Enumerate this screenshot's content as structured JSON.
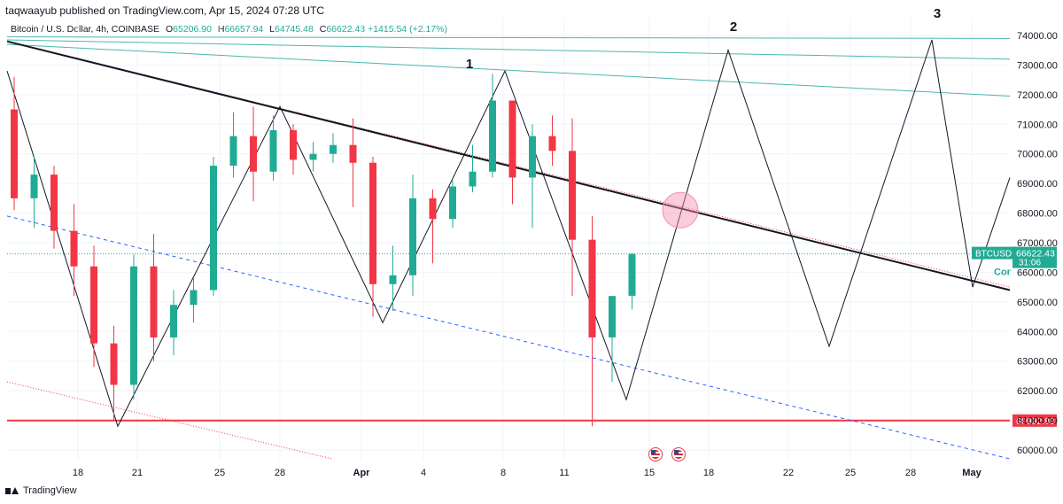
{
  "header": {
    "publisher_line": "taqwaayub published on TradingView.com, Apr 15, 2024 07:28 UTC",
    "symbol_line": "Bitcoin / U.S. Dollar, 4h, COINBASE",
    "open_label": "O",
    "open": "65206.90",
    "high_label": "H",
    "high": "66657.94",
    "low_label": "L",
    "low": "64745.48",
    "close_label": "C",
    "close": "66622.43",
    "change": "+1415.54 (+2.17%)"
  },
  "price_tag": {
    "symbol": "BTCUSD",
    "price": "66622.43",
    "countdown": "31:06",
    "partial_label": "Cor"
  },
  "support_tag": "60992.88",
  "footer": {
    "brand": "TradingView"
  },
  "wave_labels": [
    "1",
    "2",
    "3"
  ],
  "colors": {
    "up": "#22ab94",
    "down": "#f23645",
    "support": "#f23645",
    "trendline": "#131722",
    "channel_lines": "#4db6ac",
    "dashed": "#2962ff",
    "marker": "#f48fb1"
  },
  "chart_data": {
    "type": "candlestick",
    "title": "Bitcoin / U.S. Dollar, 4h, COINBASE",
    "y_axis_ticks": [
      60000,
      61000,
      62000,
      63000,
      64000,
      65000,
      66000,
      67000,
      68000,
      69000,
      70000,
      71000,
      72000,
      73000,
      74000
    ],
    "x_axis_ticks": [
      "18",
      "21",
      "25",
      "28",
      "Apr",
      "4",
      "8",
      "11",
      "15",
      "18",
      "22",
      "25",
      "28",
      "May"
    ],
    "ylim": [
      59500,
      74500
    ],
    "grid": true,
    "last_price": 66622.43,
    "support_level": 60992.88,
    "candles": [
      {
        "x": "Mar 15",
        "o": 71500,
        "h": 72600,
        "l": 68100,
        "c": 68500
      },
      {
        "x": "Mar 16",
        "o": 68500,
        "h": 69900,
        "l": 67500,
        "c": 69300
      },
      {
        "x": "Mar 17",
        "o": 69300,
        "h": 69600,
        "l": 66800,
        "c": 67400
      },
      {
        "x": "Mar 18",
        "o": 67400,
        "h": 68300,
        "l": 65200,
        "c": 66200
      },
      {
        "x": "Mar 19",
        "o": 66200,
        "h": 66900,
        "l": 62800,
        "c": 63600
      },
      {
        "x": "Mar 20",
        "o": 63600,
        "h": 64200,
        "l": 61000,
        "c": 62200
      },
      {
        "x": "Mar 21",
        "o": 62200,
        "h": 66600,
        "l": 61700,
        "c": 66200
      },
      {
        "x": "Mar 22",
        "o": 66200,
        "h": 67300,
        "l": 63000,
        "c": 63800
      },
      {
        "x": "Mar 23",
        "o": 63800,
        "h": 65400,
        "l": 63200,
        "c": 64900
      },
      {
        "x": "Mar 24",
        "o": 64900,
        "h": 65800,
        "l": 64300,
        "c": 65400
      },
      {
        "x": "Mar 25",
        "o": 65400,
        "h": 69900,
        "l": 65200,
        "c": 69600
      },
      {
        "x": "Mar 26",
        "o": 69600,
        "h": 71400,
        "l": 69200,
        "c": 70600
      },
      {
        "x": "Mar 27",
        "o": 70600,
        "h": 71600,
        "l": 68400,
        "c": 69400
      },
      {
        "x": "Mar 28",
        "o": 69400,
        "h": 71300,
        "l": 69100,
        "c": 70800
      },
      {
        "x": "Mar 29",
        "o": 70800,
        "h": 71000,
        "l": 69300,
        "c": 69800
      },
      {
        "x": "Mar 30",
        "o": 69800,
        "h": 70400,
        "l": 69400,
        "c": 70000
      },
      {
        "x": "Mar 31",
        "o": 70000,
        "h": 70700,
        "l": 69700,
        "c": 70300
      },
      {
        "x": "Apr 1",
        "o": 70300,
        "h": 71200,
        "l": 68200,
        "c": 69700
      },
      {
        "x": "Apr 2",
        "o": 69700,
        "h": 69900,
        "l": 64500,
        "c": 65600
      },
      {
        "x": "Apr 3",
        "o": 65600,
        "h": 66900,
        "l": 64700,
        "c": 65900
      },
      {
        "x": "Apr 4",
        "o": 65900,
        "h": 69300,
        "l": 65200,
        "c": 68500
      },
      {
        "x": "Apr 5",
        "o": 68500,
        "h": 68800,
        "l": 66300,
        "c": 67800
      },
      {
        "x": "Apr 6",
        "o": 67800,
        "h": 69100,
        "l": 67500,
        "c": 68900
      },
      {
        "x": "Apr 7",
        "o": 68900,
        "h": 70300,
        "l": 68700,
        "c": 69400
      },
      {
        "x": "Apr 8",
        "o": 69400,
        "h": 72700,
        "l": 69200,
        "c": 71800
      },
      {
        "x": "Apr 9",
        "o": 71800,
        "h": 71800,
        "l": 68300,
        "c": 69200
      },
      {
        "x": "Apr 10",
        "o": 69200,
        "h": 71000,
        "l": 67500,
        "c": 70600
      },
      {
        "x": "Apr 11",
        "o": 70600,
        "h": 71300,
        "l": 69600,
        "c": 70100
      },
      {
        "x": "Apr 12",
        "o": 70100,
        "h": 71200,
        "l": 65200,
        "c": 67100
      },
      {
        "x": "Apr 13",
        "o": 67100,
        "h": 67900,
        "l": 60800,
        "c": 63800
      },
      {
        "x": "Apr 14",
        "o": 63800,
        "h": 65200,
        "l": 62300,
        "c": 65200
      },
      {
        "x": "Apr 15",
        "o": 65206.9,
        "h": 66657.94,
        "l": 64745.48,
        "c": 66622.43
      }
    ]
  }
}
